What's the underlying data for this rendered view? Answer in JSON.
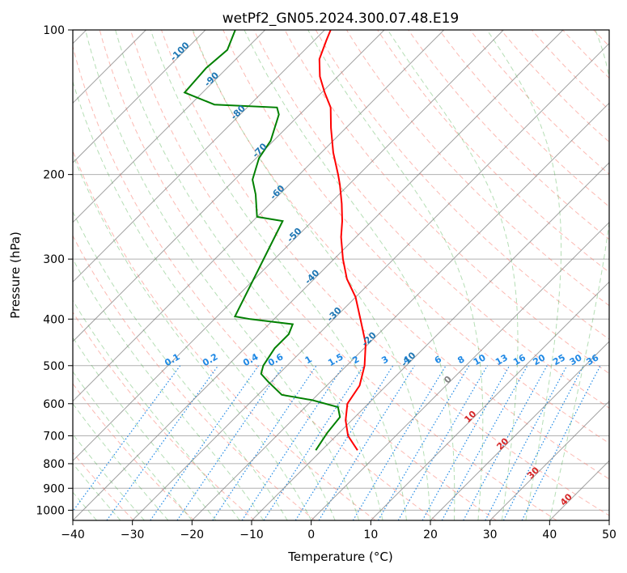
{
  "chart_data": {
    "type": "skew-t",
    "title": "wetPf2_GN05.2024.300.07.48.E19",
    "xlabel": "Temperature (°C)",
    "ylabel": "Pressure (hPa)",
    "xlim": [
      -40,
      50
    ],
    "ylim": [
      1050,
      100
    ],
    "y_scale": "log",
    "grid": true,
    "x_ticks": [
      -40,
      -30,
      -20,
      -10,
      0,
      10,
      20,
      30,
      40,
      50
    ],
    "y_ticks": [
      100,
      200,
      300,
      400,
      500,
      600,
      700,
      800,
      900,
      1000
    ],
    "colors": {
      "temperature": "#ff0000",
      "dewpoint": "#008000",
      "isotherm": "#808080",
      "dry_adiabat": "#fa8072",
      "moist_adiabat": "#2ca02c",
      "mixing_ratio": "#1e88e5",
      "frost_label": "#1f77b4",
      "warm_label": "#d62728",
      "zero_label": "#808080"
    },
    "isotherm_labels": [
      {
        "value": "-100",
        "x": -100,
        "y": 112
      },
      {
        "value": "-90",
        "x": -90,
        "y": 128
      },
      {
        "value": "-80",
        "x": -80,
        "y": 150
      },
      {
        "value": "-70",
        "x": -70,
        "y": 180
      },
      {
        "value": "-60",
        "x": -60,
        "y": 220
      },
      {
        "value": "-50",
        "x": -50,
        "y": 270
      },
      {
        "value": "-40",
        "x": -40,
        "y": 330
      },
      {
        "value": "-30",
        "x": -30,
        "y": 395
      },
      {
        "value": "-20",
        "x": -20,
        "y": 445
      },
      {
        "value": "-10",
        "x": -10,
        "y": 490
      },
      {
        "value": "0",
        "x": 0,
        "y": 540
      },
      {
        "value": "10",
        "x": 10,
        "y": 645
      },
      {
        "value": "20",
        "x": 20,
        "y": 735
      },
      {
        "value": "30",
        "x": 30,
        "y": 845
      },
      {
        "value": "40",
        "x": 40,
        "y": 960
      }
    ],
    "mixing_ratio_labels": [
      "0.1",
      "0.2",
      "0.4",
      "0.6",
      "1",
      "1.5",
      "2",
      "3",
      "4",
      "6",
      "8",
      "10",
      "13",
      "16",
      "20",
      "25",
      "30",
      "36"
    ],
    "mixing_ratio_values": [
      0.1,
      0.2,
      0.4,
      0.6,
      1,
      1.5,
      2,
      3,
      4,
      6,
      8,
      10,
      13,
      16,
      20,
      25,
      30,
      36
    ],
    "temperature_profile": {
      "p": [
        750,
        700,
        650,
        600,
        550,
        500,
        450,
        400,
        360,
        330,
        300,
        270,
        250,
        230,
        210,
        200,
        180,
        160,
        145,
        135,
        125,
        115,
        105,
        100
      ],
      "t": [
        -4,
        -8,
        -11,
        -13.5,
        -14.5,
        -17,
        -20.5,
        -25.5,
        -30,
        -34.5,
        -38.5,
        -42.5,
        -45,
        -48,
        -51.5,
        -53.5,
        -58,
        -62.5,
        -66,
        -69.5,
        -73,
        -76,
        -78,
        -79
      ]
    },
    "dewpoint_profile": {
      "p": [
        750,
        720,
        690,
        640,
        610,
        590,
        575,
        540,
        520,
        500,
        460,
        430,
        410,
        400,
        395,
        250,
        245,
        220,
        205,
        185,
        170,
        150,
        145,
        143,
        135,
        120,
        110,
        100
      ],
      "td": [
        -11,
        -11.5,
        -12,
        -12.5,
        -14.5,
        -20,
        -26,
        -30.5,
        -33,
        -34,
        -35,
        -35,
        -36,
        -44,
        -47,
        -55,
        -60,
        -64,
        -67,
        -69.5,
        -70.5,
        -73.5,
        -75,
        -86,
        -93,
        -93.5,
        -93,
        -95
      ]
    }
  }
}
